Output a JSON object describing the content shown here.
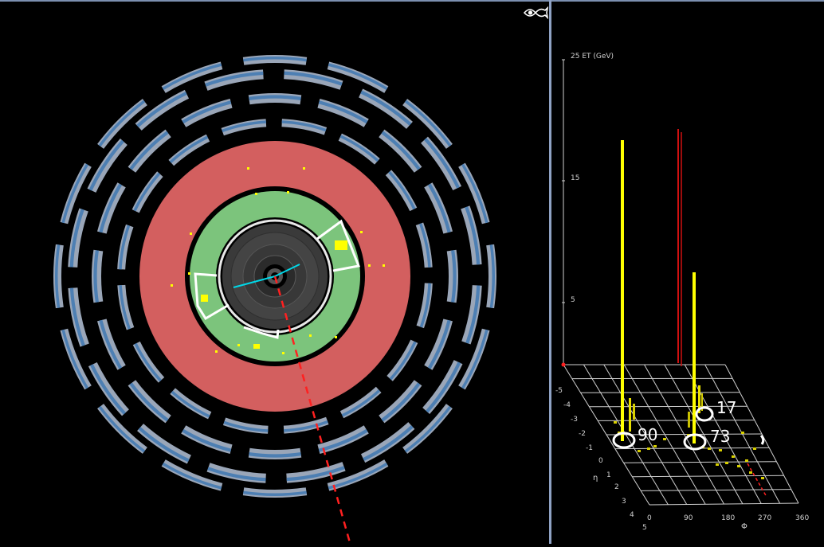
{
  "lego_plot": {
    "z_axis_title": "25 ET (GeV)",
    "z_ticks": [
      "15",
      "5"
    ],
    "eta_label": "η",
    "phi_label": "Φ",
    "eta_ticks": [
      "-5",
      "-4",
      "-3",
      "-2",
      "-1",
      "0",
      "1",
      "2",
      "3",
      "4",
      "5"
    ],
    "phi_ticks": [
      "0",
      "90",
      "180",
      "270",
      "360"
    ],
    "jet_labels": [
      "90",
      "73",
      "17"
    ]
  },
  "icons": {
    "view_toggle": "eye-fish-icon"
  },
  "colors": {
    "calorimeter_had": "#d35f5f",
    "calorimeter_em": "#7cc47c",
    "muon_chamber": "#4d7fb3",
    "track": "#00d8e8",
    "missing_et": "#ff2020",
    "energy_tower": "#ffff00"
  }
}
